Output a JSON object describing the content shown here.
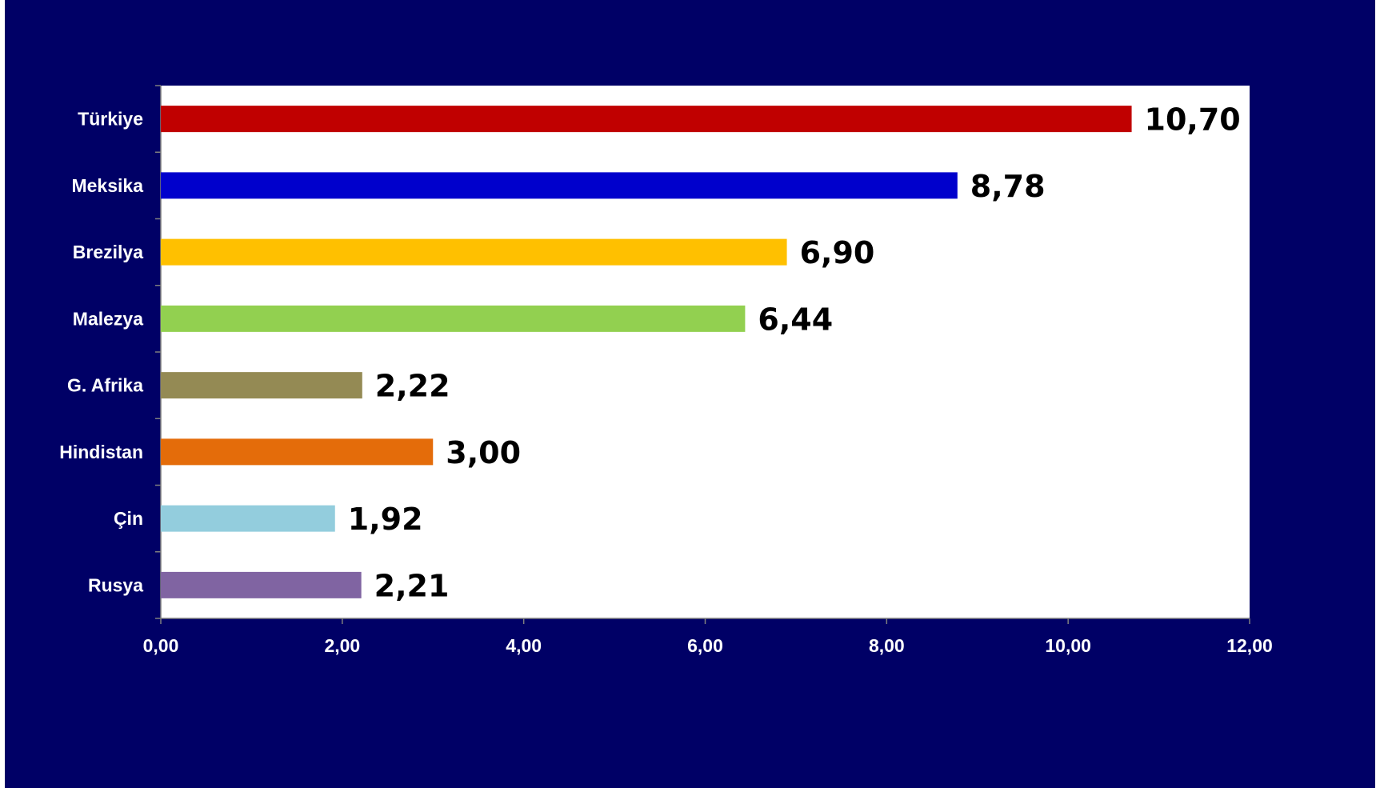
{
  "chart_data": {
    "type": "bar",
    "orientation": "horizontal",
    "categories": [
      "Türkiye",
      "Meksika",
      "Brezilya",
      "Malezya",
      "G. Afrika",
      "Hindistan",
      "Çin",
      "Rusya"
    ],
    "values": [
      10.7,
      8.78,
      6.9,
      6.44,
      2.22,
      3.0,
      1.92,
      2.21
    ],
    "data_labels": [
      "10,70",
      "8,78",
      "6,90",
      "6,44",
      "2,22",
      "3,00",
      "1,92",
      "2,21"
    ],
    "bar_colors": [
      "#c00000",
      "#0000cc",
      "#ffc000",
      "#92d050",
      "#948a54",
      "#e46c0a",
      "#93cddd",
      "#8064a2"
    ],
    "xlim": [
      0,
      12
    ],
    "x_ticks": [
      0,
      2,
      4,
      6,
      8,
      10,
      12
    ],
    "x_tick_labels": [
      "0,00",
      "2,00",
      "4,00",
      "6,00",
      "8,00",
      "10,00",
      "12,00"
    ],
    "title": "",
    "xlabel": "",
    "ylabel": "",
    "grid": false,
    "legend": "none"
  },
  "colors": {
    "background": "#000066",
    "plot_area": "#ffffff",
    "axis_text": "#ffffff",
    "data_label_text": "#000000"
  }
}
